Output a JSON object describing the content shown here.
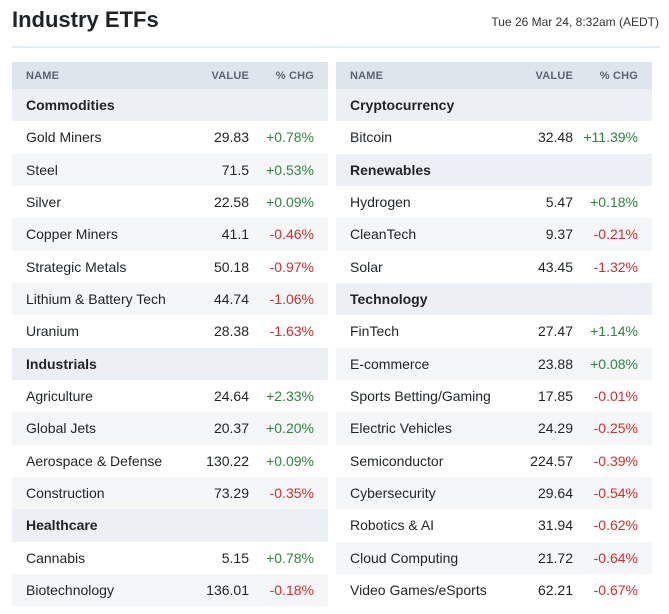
{
  "page": {
    "title": "Industry ETFs",
    "timestamp": "Tue 26 Mar 24, 8:32am (AEDT)"
  },
  "columns": {
    "name": "NAME",
    "value": "VALUE",
    "chg": "% CHG"
  },
  "left": [
    {
      "type": "cat",
      "name": "Commodities"
    },
    {
      "type": "row",
      "name": "Gold Miners",
      "value": "29.83",
      "chg": "+0.78%"
    },
    {
      "type": "row",
      "name": "Steel",
      "value": "71.5",
      "chg": "+0.53%"
    },
    {
      "type": "row",
      "name": "Silver",
      "value": "22.58",
      "chg": "+0.09%"
    },
    {
      "type": "row",
      "name": "Copper Miners",
      "value": "41.1",
      "chg": "-0.46%"
    },
    {
      "type": "row",
      "name": "Strategic Metals",
      "value": "50.18",
      "chg": "-0.97%"
    },
    {
      "type": "row",
      "name": "Lithium & Battery Tech",
      "value": "44.74",
      "chg": "-1.06%"
    },
    {
      "type": "row",
      "name": "Uranium",
      "value": "28.38",
      "chg": "-1.63%"
    },
    {
      "type": "cat",
      "name": "Industrials"
    },
    {
      "type": "row",
      "name": "Agriculture",
      "value": "24.64",
      "chg": "+2.33%"
    },
    {
      "type": "row",
      "name": "Global Jets",
      "value": "20.37",
      "chg": "+0.20%"
    },
    {
      "type": "row",
      "name": "Aerospace & Defense",
      "value": "130.22",
      "chg": "+0.09%"
    },
    {
      "type": "row",
      "name": "Construction",
      "value": "73.29",
      "chg": "-0.35%"
    },
    {
      "type": "cat",
      "name": "Healthcare"
    },
    {
      "type": "row",
      "name": "Cannabis",
      "value": "5.15",
      "chg": "+0.78%"
    },
    {
      "type": "row",
      "name": "Biotechnology",
      "value": "136.01",
      "chg": "-0.18%"
    }
  ],
  "right": [
    {
      "type": "cat",
      "name": "Cryptocurrency"
    },
    {
      "type": "row",
      "name": "Bitcoin",
      "value": "32.48",
      "chg": "+11.39%"
    },
    {
      "type": "cat",
      "name": "Renewables"
    },
    {
      "type": "row",
      "name": "Hydrogen",
      "value": "5.47",
      "chg": "+0.18%"
    },
    {
      "type": "row",
      "name": "CleanTech",
      "value": "9.37",
      "chg": "-0.21%"
    },
    {
      "type": "row",
      "name": "Solar",
      "value": "43.45",
      "chg": "-1.32%"
    },
    {
      "type": "cat",
      "name": "Technology"
    },
    {
      "type": "row",
      "name": "FinTech",
      "value": "27.47",
      "chg": "+1.14%"
    },
    {
      "type": "row",
      "name": "E-commerce",
      "value": "23.88",
      "chg": "+0.08%"
    },
    {
      "type": "row",
      "name": "Sports Betting/Gaming",
      "value": "17.85",
      "chg": "-0.01%"
    },
    {
      "type": "row",
      "name": "Electric Vehicles",
      "value": "24.29",
      "chg": "-0.25%"
    },
    {
      "type": "row",
      "name": "Semiconductor",
      "value": "224.57",
      "chg": "-0.39%"
    },
    {
      "type": "row",
      "name": "Cybersecurity",
      "value": "29.64",
      "chg": "-0.54%"
    },
    {
      "type": "row",
      "name": "Robotics & AI",
      "value": "31.94",
      "chg": "-0.62%"
    },
    {
      "type": "row",
      "name": "Cloud Computing",
      "value": "21.72",
      "chg": "-0.64%"
    },
    {
      "type": "row",
      "name": "Video Games/eSports",
      "value": "62.21",
      "chg": "-0.67%"
    }
  ],
  "colors": {
    "positive": "#2e8540",
    "negative": "#d32f2f",
    "header_bg": "#dfe5ec"
  }
}
